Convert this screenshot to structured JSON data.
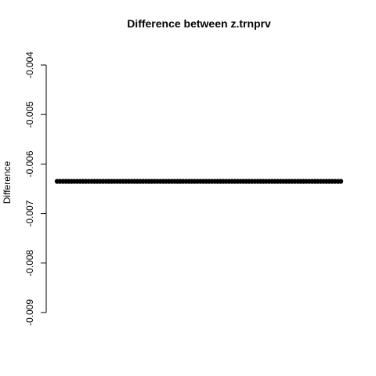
{
  "chart_data": {
    "type": "scatter",
    "title": "Difference between z.trnprv",
    "xlabel": "",
    "ylabel": "Difference",
    "ylim": [
      -0.009,
      -0.004
    ],
    "y_ticks": [
      -0.004,
      -0.005,
      -0.006,
      -0.007,
      -0.008,
      -0.009
    ],
    "y_tick_labels": [
      "-0.004",
      "-0.005",
      "-0.006",
      "-0.007",
      "-0.008",
      "-0.009"
    ],
    "x_range": [
      1,
      100
    ],
    "series": [
      {
        "value": -0.00635,
        "count": 100,
        "color": "#000000"
      }
    ],
    "grid": false,
    "legend": "none"
  }
}
